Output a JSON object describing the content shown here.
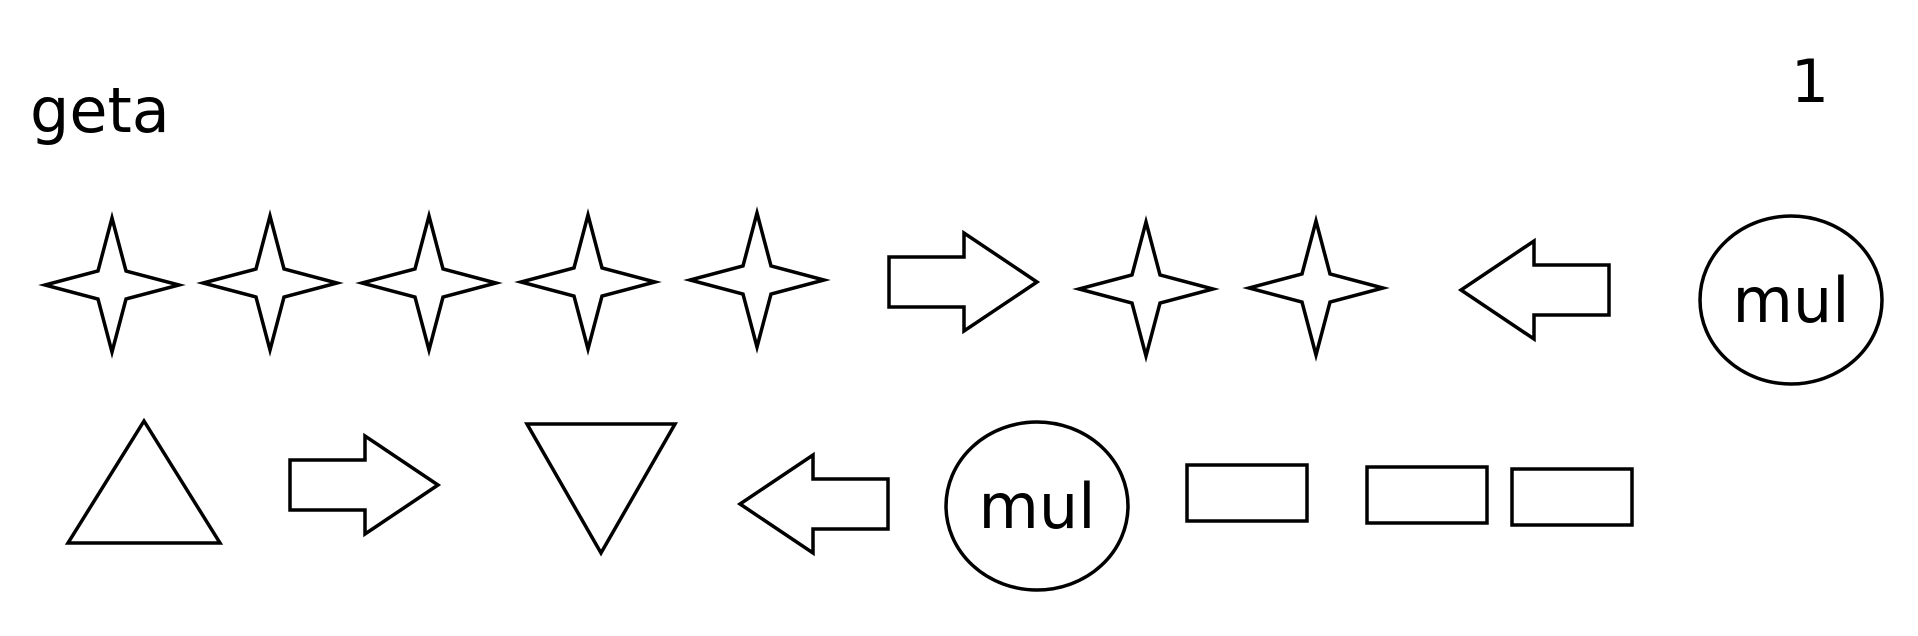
{
  "title": "geta",
  "page_number": "1",
  "rows": [
    {
      "items": [
        {
          "kind": "star"
        },
        {
          "kind": "star"
        },
        {
          "kind": "star"
        },
        {
          "kind": "star"
        },
        {
          "kind": "star"
        },
        {
          "kind": "arrow-right"
        },
        {
          "kind": "star"
        },
        {
          "kind": "star"
        },
        {
          "kind": "arrow-left"
        },
        {
          "kind": "circle",
          "text": "mul"
        }
      ]
    },
    {
      "items": [
        {
          "kind": "triangle-up"
        },
        {
          "kind": "arrow-right"
        },
        {
          "kind": "triangle-down"
        },
        {
          "kind": "arrow-left"
        },
        {
          "kind": "circle",
          "text": "mul"
        },
        {
          "kind": "rectangle"
        },
        {
          "kind": "rectangle"
        },
        {
          "kind": "rectangle"
        }
      ]
    }
  ]
}
